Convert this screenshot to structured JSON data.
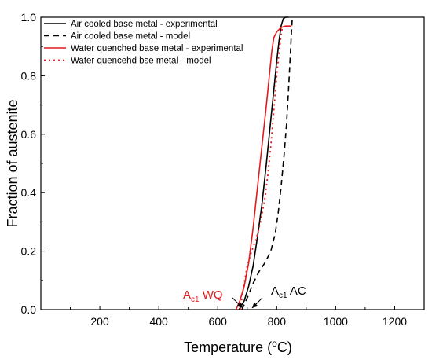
{
  "chart_data": {
    "type": "line",
    "xlabel_main": "Temperature (",
    "xlabel_sup": "o",
    "xlabel_end": "C)",
    "ylabel": "Fraction of austenite",
    "xlim": [
      0,
      1300
    ],
    "ylim": [
      0,
      1.0
    ],
    "x_ticks": [
      "200",
      "400",
      "600",
      "800",
      "1000",
      "1200"
    ],
    "y_ticks": [
      "0.0",
      "0.2",
      "0.4",
      "0.6",
      "0.8",
      "1.0"
    ],
    "legend_position": "top-left",
    "series": [
      {
        "name": "Air cooled base metal - experimental",
        "color": "#000000",
        "style": "solid",
        "points": [
          [
            672,
            0.0
          ],
          [
            690,
            0.03
          ],
          [
            705,
            0.08
          ],
          [
            720,
            0.15
          ],
          [
            735,
            0.25
          ],
          [
            750,
            0.36
          ],
          [
            765,
            0.5
          ],
          [
            780,
            0.65
          ],
          [
            790,
            0.75
          ],
          [
            800,
            0.85
          ],
          [
            808,
            0.92
          ],
          [
            815,
            0.97
          ],
          [
            822,
            0.995
          ],
          [
            830,
            1.0
          ],
          [
            840,
            1.0
          ]
        ]
      },
      {
        "name": "Air cooled base metal - model",
        "color": "#000000",
        "style": "dashed",
        "points": [
          [
            682,
            0.0
          ],
          [
            700,
            0.04
          ],
          [
            720,
            0.09
          ],
          [
            740,
            0.13
          ],
          [
            760,
            0.16
          ],
          [
            780,
            0.2
          ],
          [
            795,
            0.26
          ],
          [
            805,
            0.33
          ],
          [
            815,
            0.42
          ],
          [
            825,
            0.53
          ],
          [
            833,
            0.63
          ],
          [
            840,
            0.75
          ],
          [
            845,
            0.85
          ],
          [
            850,
            0.95
          ],
          [
            853,
            1.0
          ]
        ]
      },
      {
        "name": "Water quenched base metal - experimental",
        "color": "#e31a1c",
        "style": "solid",
        "points": [
          [
            662,
            0.0
          ],
          [
            675,
            0.03
          ],
          [
            690,
            0.08
          ],
          [
            705,
            0.16
          ],
          [
            720,
            0.28
          ],
          [
            735,
            0.42
          ],
          [
            750,
            0.56
          ],
          [
            765,
            0.7
          ],
          [
            775,
            0.8
          ],
          [
            783,
            0.88
          ],
          [
            790,
            0.93
          ],
          [
            800,
            0.95
          ],
          [
            815,
            0.965
          ],
          [
            830,
            0.97
          ],
          [
            850,
            0.97
          ]
        ]
      },
      {
        "name": "Water quencehd bse metal - model",
        "color": "#e31a1c",
        "style": "dotted",
        "points": [
          [
            676,
            0.0
          ],
          [
            688,
            0.08
          ],
          [
            700,
            0.15
          ],
          [
            715,
            0.2
          ],
          [
            730,
            0.24
          ],
          [
            745,
            0.3
          ],
          [
            760,
            0.38
          ],
          [
            770,
            0.46
          ],
          [
            780,
            0.56
          ],
          [
            790,
            0.68
          ],
          [
            800,
            0.8
          ],
          [
            808,
            0.88
          ],
          [
            815,
            0.94
          ],
          [
            820,
            0.97
          ]
        ]
      }
    ],
    "annotations": [
      {
        "main": "A",
        "sub": "c1",
        "tail": " WQ",
        "color": "#e31a1c"
      },
      {
        "main": "A",
        "sub": "c1",
        "tail": " AC",
        "color": "#000000"
      }
    ]
  }
}
